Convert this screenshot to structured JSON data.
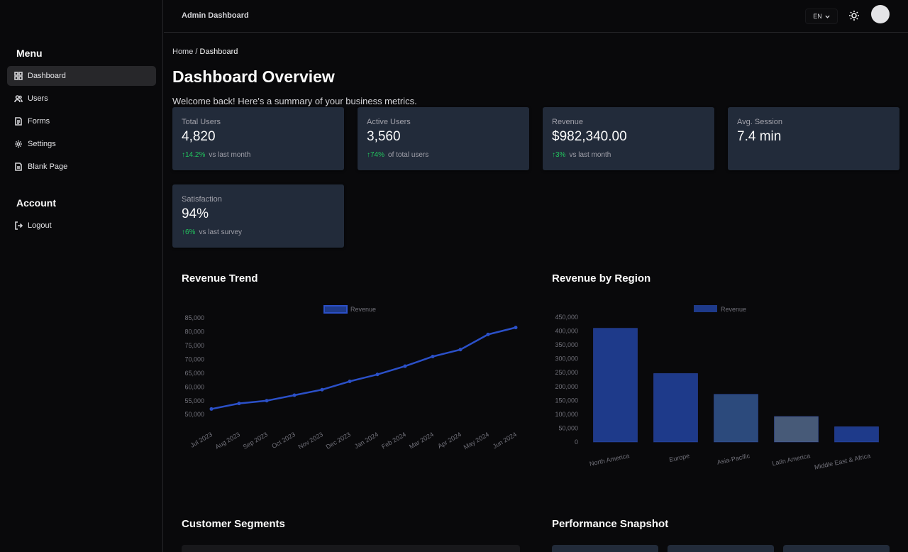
{
  "sidebar": {
    "menu_title": "Menu",
    "items": [
      {
        "label": "Dashboard",
        "icon": "dashboard-icon"
      },
      {
        "label": "Users",
        "icon": "users-icon"
      },
      {
        "label": "Forms",
        "icon": "forms-icon"
      },
      {
        "label": "Settings",
        "icon": "gear-icon"
      },
      {
        "label": "Blank Page",
        "icon": "page-icon"
      }
    ],
    "account_title": "Account",
    "account_items": [
      {
        "label": "Logout",
        "icon": "logout-icon"
      }
    ]
  },
  "topbar": {
    "title": "Admin Dashboard",
    "language": "EN"
  },
  "breadcrumb": {
    "home": "Home",
    "separator": "/",
    "current": "Dashboard"
  },
  "page": {
    "title": "Dashboard Overview",
    "subtitle": "Welcome back! Here's a summary of your business metrics."
  },
  "cards": [
    {
      "label": "Total Users",
      "value": "4,820",
      "delta": "14.2%",
      "delta_note": "vs last month"
    },
    {
      "label": "Active Users",
      "value": "3,560",
      "delta": "74%",
      "delta_note": "of total users"
    },
    {
      "label": "Revenue",
      "value": "$982,340.00",
      "delta": "3%",
      "delta_note": "vs last month"
    },
    {
      "label": "Avg. Session",
      "value": "7.4 min"
    },
    {
      "label": "Satisfaction",
      "value": "94%",
      "delta": "6%",
      "delta_note": "vs last survey"
    }
  ],
  "sections": {
    "revenue_trend": "Revenue Trend",
    "revenue_by_region": "Revenue by Region",
    "customer_segments": "Customer Segments",
    "performance_snapshot": "Performance Snapshot"
  },
  "colors": {
    "accent": "#2b50c8",
    "positive": "#22c55e",
    "card_bg": "#222b3a"
  },
  "chart_data": [
    {
      "type": "line",
      "title": "Revenue Trend",
      "categories": [
        "Jul 2023",
        "Aug 2023",
        "Sep 2023",
        "Oct 2023",
        "Nov 2023",
        "Dec 2023",
        "Jan 2024",
        "Feb 2024",
        "Mar 2024",
        "Apr 2024",
        "May 2024",
        "Jun 2024"
      ],
      "series": [
        {
          "name": "Revenue",
          "values": [
            52000,
            54000,
            55000,
            57000,
            59000,
            62000,
            64500,
            67500,
            71000,
            73500,
            79000,
            81500
          ],
          "color": "#2b50c8"
        }
      ],
      "yticks": [
        50000,
        55000,
        60000,
        65000,
        70000,
        75000,
        80000,
        85000
      ],
      "ytick_labels": [
        "50,000",
        "55,000",
        "60,000",
        "65,000",
        "70,000",
        "75,000",
        "80,000",
        "85,000"
      ],
      "ylim": [
        48000,
        85000
      ],
      "legend": "top-center",
      "grid": false
    },
    {
      "type": "bar",
      "title": "Revenue by Region",
      "categories": [
        "North America",
        "Europe",
        "Asia-Pacific",
        "Latin America",
        "Middle East & Africa"
      ],
      "series": [
        {
          "name": "Revenue",
          "values": [
            410000,
            247000,
            172000,
            92000,
            55000
          ]
        }
      ],
      "bar_colors": [
        "#1e3a8a",
        "#1e3a8a",
        "#2c4a7c",
        "#475a78",
        "#1e3a8a"
      ],
      "yticks": [
        0,
        50000,
        100000,
        150000,
        200000,
        250000,
        300000,
        350000,
        400000,
        450000
      ],
      "ytick_labels": [
        "0",
        "50,000",
        "100,000",
        "150,000",
        "200,000",
        "250,000",
        "300,000",
        "350,000",
        "400,000",
        "450,000"
      ],
      "ylim": [
        0,
        450000
      ],
      "legend": "top-center",
      "grid": false
    }
  ]
}
